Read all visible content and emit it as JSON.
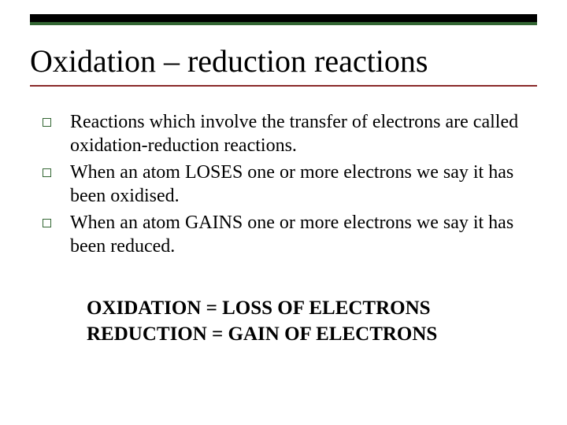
{
  "colors": {
    "top_bar": "#000000",
    "top_bar_accent": "#336633",
    "title_underline": "#8a2a2a",
    "bullet_border": "#336633",
    "text": "#000000",
    "background": "#ffffff"
  },
  "typography": {
    "title_fontsize": 40,
    "body_fontsize": 24,
    "summary_fontsize": 25,
    "font_family": "Times New Roman"
  },
  "title": "Oxidation – reduction reactions",
  "bullets": [
    "Reactions which involve the transfer of electrons are called oxidation-reduction reactions.",
    "When an atom LOSES one or more electrons we say it has been oxidised.",
    "When an atom GAINS one or more electrons we say it has been reduced."
  ],
  "summary": [
    "OXIDATION = LOSS OF ELECTRONS",
    "REDUCTION = GAIN OF ELECTRONS"
  ]
}
